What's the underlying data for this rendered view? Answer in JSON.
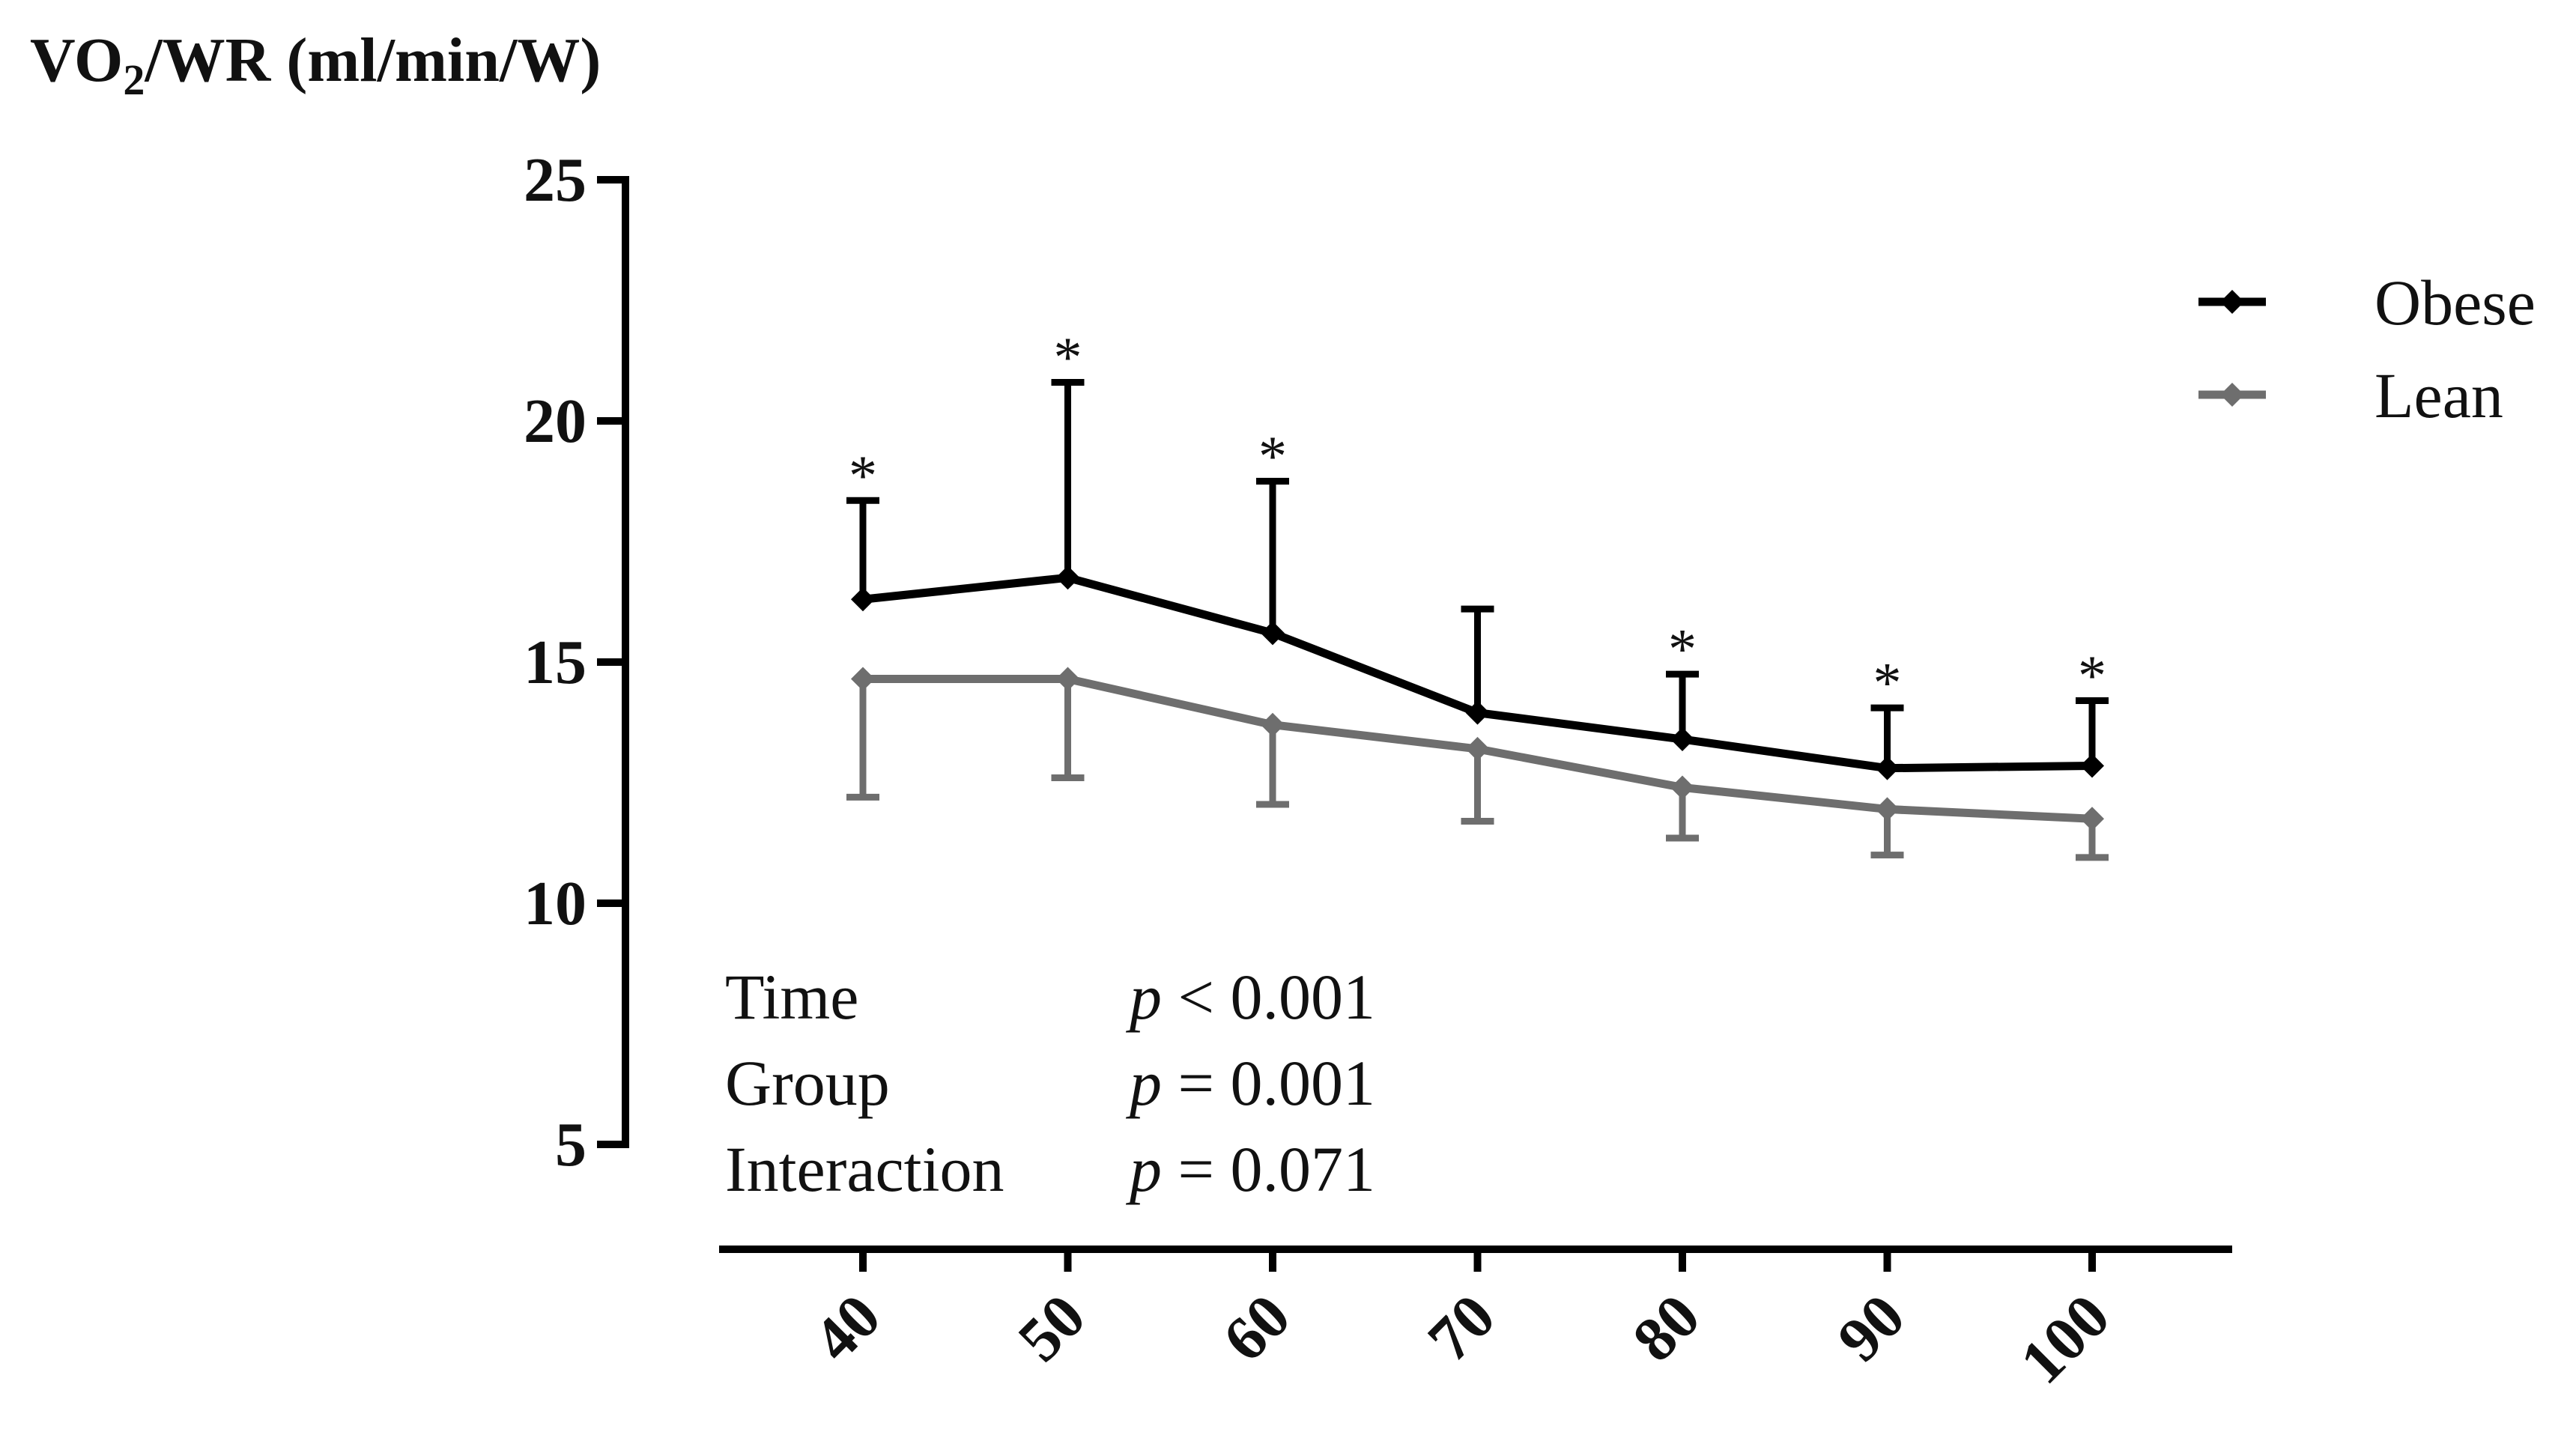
{
  "chart_data": {
    "type": "line",
    "ylabel": {
      "prefix": "VO",
      "subscript": "2",
      "suffix": "/WR (ml/min/W)"
    },
    "categories": [
      "40",
      "50",
      "60",
      "70",
      "80",
      "90",
      "100"
    ],
    "ylim": [
      5,
      25
    ],
    "y_ticks": [
      5,
      10,
      15,
      20,
      25
    ],
    "series": [
      {
        "name": "Obese",
        "color": "#000000",
        "values": [
          16.3,
          16.75,
          15.6,
          13.95,
          13.4,
          12.8,
          12.85
        ],
        "error_up": [
          18.35,
          20.8,
          18.75,
          16.1,
          14.75,
          14.05,
          14.2
        ],
        "error_direction": "up"
      },
      {
        "name": "Lean",
        "color": "#6e6e6e",
        "values": [
          14.65,
          14.65,
          13.7,
          13.2,
          12.4,
          11.95,
          11.75
        ],
        "error_down": [
          12.2,
          12.6,
          12.05,
          11.7,
          11.35,
          11.0,
          10.95
        ],
        "error_direction": "down"
      }
    ],
    "significance": {
      "symbol": "*",
      "categories": [
        "40",
        "50",
        "60",
        "80",
        "90",
        "100"
      ]
    },
    "stats": [
      {
        "label": "Time",
        "p_symbol": "p",
        "value": " < 0.001"
      },
      {
        "label": "Group",
        "p_symbol": "p",
        "value": " = 0.001"
      },
      {
        "label": "Interaction",
        "p_symbol": "p",
        "value": " = 0.071"
      }
    ],
    "legend": {
      "position": "top-right",
      "entries": [
        "Obese",
        "Lean"
      ]
    },
    "grid": false
  }
}
